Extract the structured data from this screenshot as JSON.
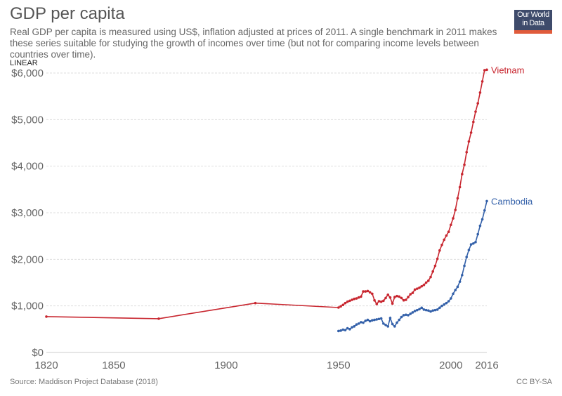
{
  "header": {
    "title": "GDP per capita",
    "subtitle": "Real GDP per capita is measured using US$, inflation adjusted at prices of 2011. A single benchmark in 2011 makes these series suitable for studying the growth of incomes over time (but not for comparing income levels between countries over time).",
    "scale_toggle": "LINEAR",
    "logo_line1": "Our World",
    "logo_line2": "in Data"
  },
  "footer": {
    "source": "Source: Maddison Project Database (2018)",
    "license": "CC BY-SA"
  },
  "chart_data": {
    "type": "line",
    "title": "GDP per capita",
    "xlabel": "",
    "ylabel": "",
    "xlim": [
      1820,
      2016
    ],
    "ylim": [
      0,
      6000
    ],
    "x_ticks": [
      1820,
      1850,
      1900,
      1950,
      2000,
      2016
    ],
    "x_tick_labels": [
      "1820",
      "1850",
      "1900",
      "1950",
      "2000",
      "2016"
    ],
    "y_ticks": [
      0,
      1000,
      2000,
      3000,
      4000,
      5000,
      6000
    ],
    "y_tick_labels": [
      "$0",
      "$1,000",
      "$2,000",
      "$3,000",
      "$4,000",
      "$5,000",
      "$6,000"
    ],
    "grid": true,
    "legend": "end-labels",
    "series": [
      {
        "name": "Vietnam",
        "color": "#c8262f",
        "x": [
          1820,
          1870,
          1913,
          1950,
          1951,
          1952,
          1953,
          1954,
          1955,
          1956,
          1957,
          1958,
          1959,
          1960,
          1961,
          1962,
          1963,
          1964,
          1965,
          1966,
          1967,
          1968,
          1969,
          1970,
          1971,
          1972,
          1973,
          1974,
          1975,
          1976,
          1977,
          1978,
          1979,
          1980,
          1981,
          1982,
          1983,
          1984,
          1985,
          1986,
          1987,
          1988,
          1989,
          1990,
          1991,
          1992,
          1993,
          1994,
          1995,
          1996,
          1997,
          1998,
          1999,
          2000,
          2001,
          2002,
          2003,
          2004,
          2005,
          2006,
          2007,
          2008,
          2009,
          2010,
          2011,
          2012,
          2013,
          2014,
          2015,
          2016
        ],
        "values": [
          770,
          725,
          1060,
          965,
          990,
          1020,
          1060,
          1090,
          1110,
          1130,
          1150,
          1160,
          1180,
          1200,
          1310,
          1310,
          1320,
          1290,
          1260,
          1120,
          1040,
          1100,
          1090,
          1110,
          1170,
          1240,
          1180,
          1050,
          1190,
          1210,
          1200,
          1170,
          1120,
          1130,
          1190,
          1250,
          1280,
          1350,
          1370,
          1390,
          1420,
          1450,
          1500,
          1540,
          1620,
          1740,
          1860,
          2010,
          2190,
          2310,
          2420,
          2510,
          2590,
          2740,
          2880,
          3060,
          3310,
          3550,
          3830,
          4030,
          4300,
          4530,
          4720,
          4950,
          5170,
          5350,
          5580,
          5820,
          6060,
          6070
        ],
        "end_label": "Vietnam"
      },
      {
        "name": "Cambodia",
        "color": "#3360a9",
        "x": [
          1950,
          1951,
          1952,
          1953,
          1954,
          1955,
          1956,
          1957,
          1958,
          1959,
          1960,
          1961,
          1962,
          1963,
          1964,
          1965,
          1966,
          1967,
          1968,
          1969,
          1970,
          1971,
          1972,
          1973,
          1974,
          1975,
          1976,
          1977,
          1978,
          1979,
          1980,
          1981,
          1982,
          1983,
          1984,
          1985,
          1986,
          1987,
          1988,
          1989,
          1990,
          1991,
          1992,
          1993,
          1994,
          1995,
          1996,
          1997,
          1998,
          1999,
          2000,
          2001,
          2002,
          2003,
          2004,
          2005,
          2006,
          2007,
          2008,
          2009,
          2010,
          2011,
          2012,
          2013,
          2014,
          2015,
          2016
        ],
        "values": [
          460,
          470,
          490,
          480,
          520,
          500,
          540,
          560,
          600,
          620,
          650,
          640,
          680,
          700,
          670,
          690,
          700,
          710,
          720,
          730,
          620,
          590,
          560,
          740,
          610,
          560,
          640,
          700,
          760,
          800,
          810,
          800,
          830,
          860,
          890,
          910,
          930,
          960,
          920,
          910,
          900,
          880,
          900,
          910,
          920,
          960,
          1000,
          1030,
          1060,
          1100,
          1160,
          1260,
          1340,
          1410,
          1520,
          1660,
          1860,
          2050,
          2200,
          2320,
          2340,
          2370,
          2540,
          2720,
          2860,
          3050,
          3250
        ],
        "end_label": "Cambodia"
      }
    ]
  }
}
